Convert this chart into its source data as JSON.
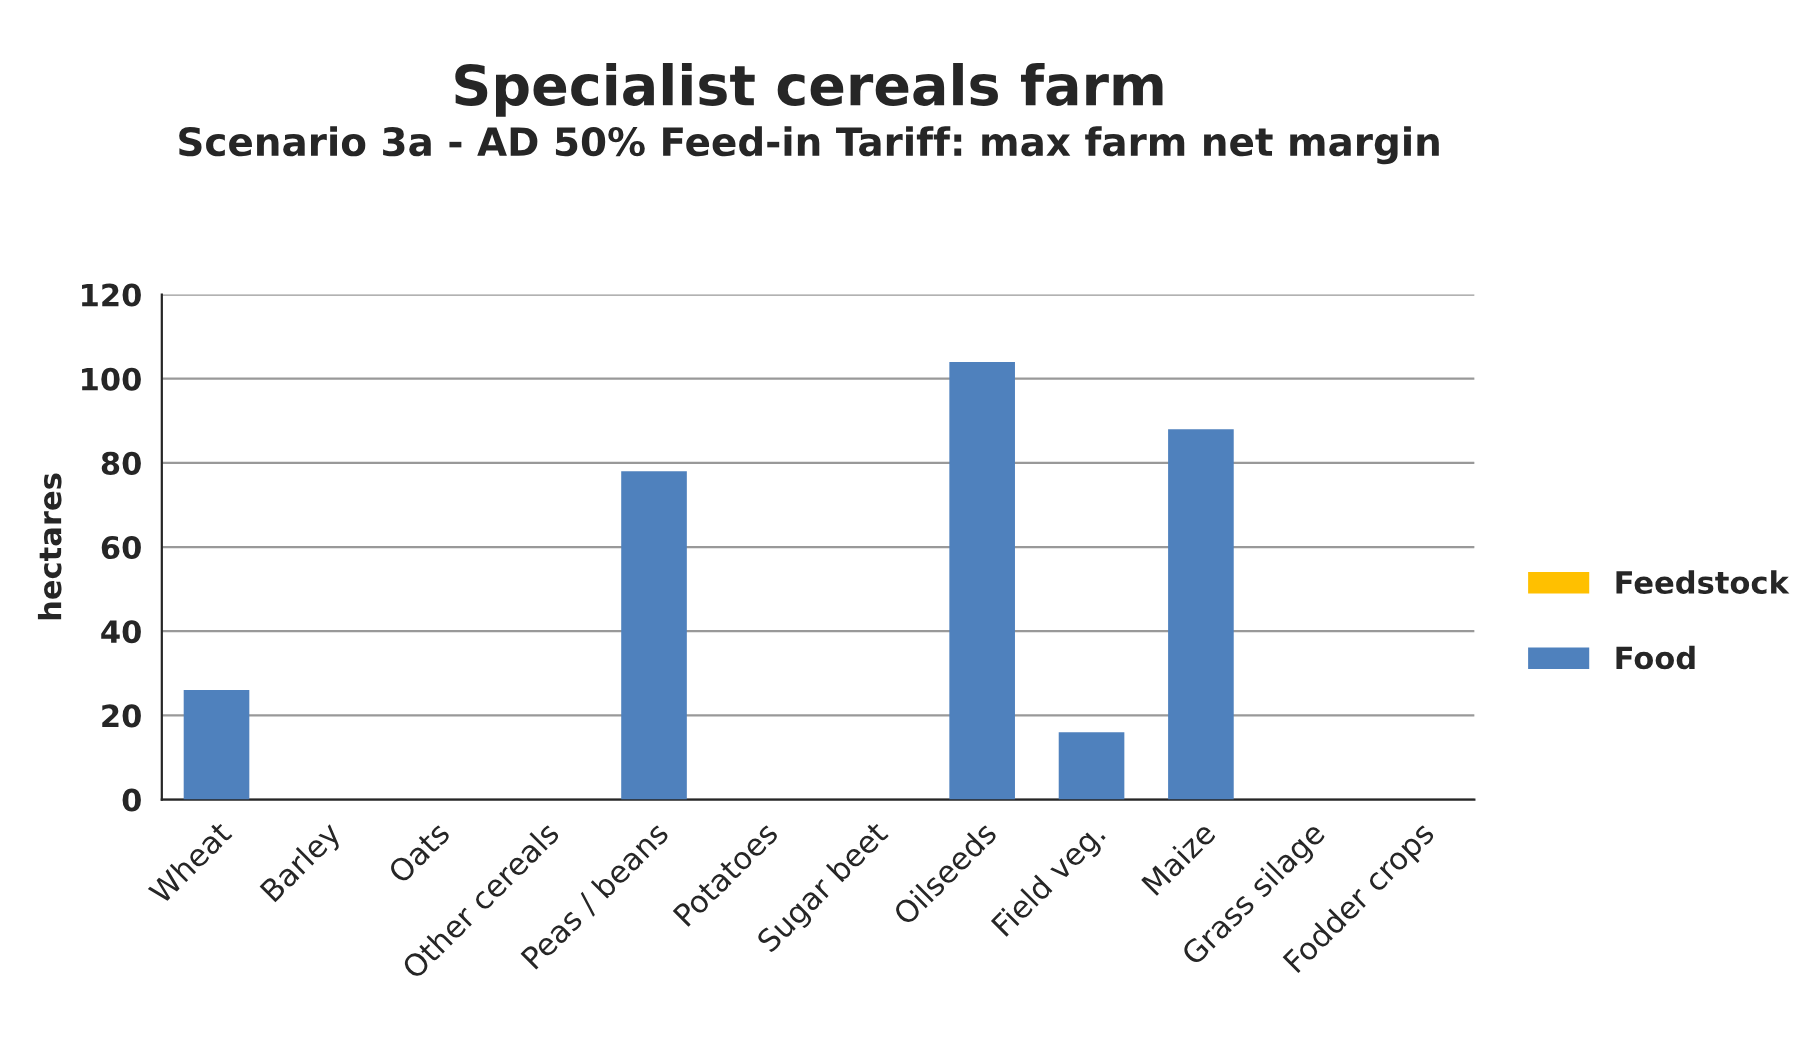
{
  "chart_data": {
    "type": "bar",
    "title": "Specialist cereals farm",
    "subtitle": "Scenario 3a - AD 50% Feed-in Tariff: max farm net margin",
    "ylabel": "hectares",
    "categories": [
      "Wheat",
      "Barley",
      "Oats",
      "Other cereals",
      "Peas / beans",
      "Potatoes",
      "Sugar beet",
      "Oilseeds",
      "Field veg.",
      "Maize",
      "Grass silage",
      "Fodder crops"
    ],
    "series": [
      {
        "name": "Food",
        "color": "#4f81bd",
        "values": [
          26,
          0,
          0,
          0,
          78,
          0,
          0,
          104,
          16,
          88,
          0,
          0
        ]
      },
      {
        "name": "Feedstock",
        "color": "#ffc000",
        "values": [
          0,
          0,
          0,
          0,
          0,
          0,
          0,
          0,
          0,
          0,
          0,
          0
        ]
      }
    ],
    "stacked": true,
    "ylim": [
      0,
      120
    ],
    "yticks": [
      0,
      20,
      40,
      60,
      80,
      100,
      120
    ],
    "grid": "y",
    "legend": "right"
  }
}
